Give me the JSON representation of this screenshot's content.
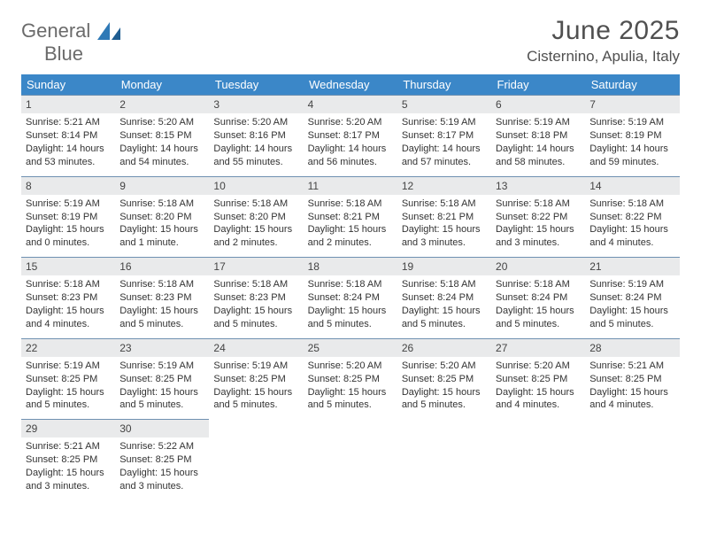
{
  "colors": {
    "header_bg": "#3b87c8",
    "header_text": "#ffffff",
    "daynum_bg": "#e9eaeb",
    "week_divider": "#6f91b1",
    "body_text": "#333333",
    "title_text": "#505050",
    "logo_gray": "#6b6b6b",
    "logo_blue": "#2f79b6",
    "page_bg": "#ffffff"
  },
  "fonts": {
    "title_month_size": 30,
    "title_loc_size": 17,
    "weekday_size": 13,
    "daynum_size": 12,
    "body_size": 11
  },
  "logo": {
    "line1": "General",
    "line2": "Blue"
  },
  "title": {
    "month": "June 2025",
    "location": "Cisternino, Apulia, Italy"
  },
  "weekdays": [
    "Sunday",
    "Monday",
    "Tuesday",
    "Wednesday",
    "Thursday",
    "Friday",
    "Saturday"
  ],
  "weeks": [
    [
      {
        "n": "1",
        "sr": "5:21 AM",
        "ss": "8:14 PM",
        "dl": "14 hours and 53 minutes."
      },
      {
        "n": "2",
        "sr": "5:20 AM",
        "ss": "8:15 PM",
        "dl": "14 hours and 54 minutes."
      },
      {
        "n": "3",
        "sr": "5:20 AM",
        "ss": "8:16 PM",
        "dl": "14 hours and 55 minutes."
      },
      {
        "n": "4",
        "sr": "5:20 AM",
        "ss": "8:17 PM",
        "dl": "14 hours and 56 minutes."
      },
      {
        "n": "5",
        "sr": "5:19 AM",
        "ss": "8:17 PM",
        "dl": "14 hours and 57 minutes."
      },
      {
        "n": "6",
        "sr": "5:19 AM",
        "ss": "8:18 PM",
        "dl": "14 hours and 58 minutes."
      },
      {
        "n": "7",
        "sr": "5:19 AM",
        "ss": "8:19 PM",
        "dl": "14 hours and 59 minutes."
      }
    ],
    [
      {
        "n": "8",
        "sr": "5:19 AM",
        "ss": "8:19 PM",
        "dl": "15 hours and 0 minutes."
      },
      {
        "n": "9",
        "sr": "5:18 AM",
        "ss": "8:20 PM",
        "dl": "15 hours and 1 minute."
      },
      {
        "n": "10",
        "sr": "5:18 AM",
        "ss": "8:20 PM",
        "dl": "15 hours and 2 minutes."
      },
      {
        "n": "11",
        "sr": "5:18 AM",
        "ss": "8:21 PM",
        "dl": "15 hours and 2 minutes."
      },
      {
        "n": "12",
        "sr": "5:18 AM",
        "ss": "8:21 PM",
        "dl": "15 hours and 3 minutes."
      },
      {
        "n": "13",
        "sr": "5:18 AM",
        "ss": "8:22 PM",
        "dl": "15 hours and 3 minutes."
      },
      {
        "n": "14",
        "sr": "5:18 AM",
        "ss": "8:22 PM",
        "dl": "15 hours and 4 minutes."
      }
    ],
    [
      {
        "n": "15",
        "sr": "5:18 AM",
        "ss": "8:23 PM",
        "dl": "15 hours and 4 minutes."
      },
      {
        "n": "16",
        "sr": "5:18 AM",
        "ss": "8:23 PM",
        "dl": "15 hours and 5 minutes."
      },
      {
        "n": "17",
        "sr": "5:18 AM",
        "ss": "8:23 PM",
        "dl": "15 hours and 5 minutes."
      },
      {
        "n": "18",
        "sr": "5:18 AM",
        "ss": "8:24 PM",
        "dl": "15 hours and 5 minutes."
      },
      {
        "n": "19",
        "sr": "5:18 AM",
        "ss": "8:24 PM",
        "dl": "15 hours and 5 minutes."
      },
      {
        "n": "20",
        "sr": "5:18 AM",
        "ss": "8:24 PM",
        "dl": "15 hours and 5 minutes."
      },
      {
        "n": "21",
        "sr": "5:19 AM",
        "ss": "8:24 PM",
        "dl": "15 hours and 5 minutes."
      }
    ],
    [
      {
        "n": "22",
        "sr": "5:19 AM",
        "ss": "8:25 PM",
        "dl": "15 hours and 5 minutes."
      },
      {
        "n": "23",
        "sr": "5:19 AM",
        "ss": "8:25 PM",
        "dl": "15 hours and 5 minutes."
      },
      {
        "n": "24",
        "sr": "5:19 AM",
        "ss": "8:25 PM",
        "dl": "15 hours and 5 minutes."
      },
      {
        "n": "25",
        "sr": "5:20 AM",
        "ss": "8:25 PM",
        "dl": "15 hours and 5 minutes."
      },
      {
        "n": "26",
        "sr": "5:20 AM",
        "ss": "8:25 PM",
        "dl": "15 hours and 5 minutes."
      },
      {
        "n": "27",
        "sr": "5:20 AM",
        "ss": "8:25 PM",
        "dl": "15 hours and 4 minutes."
      },
      {
        "n": "28",
        "sr": "5:21 AM",
        "ss": "8:25 PM",
        "dl": "15 hours and 4 minutes."
      }
    ],
    [
      {
        "n": "29",
        "sr": "5:21 AM",
        "ss": "8:25 PM",
        "dl": "15 hours and 3 minutes."
      },
      {
        "n": "30",
        "sr": "5:22 AM",
        "ss": "8:25 PM",
        "dl": "15 hours and 3 minutes."
      },
      null,
      null,
      null,
      null,
      null
    ]
  ],
  "labels": {
    "sunrise": "Sunrise: ",
    "sunset": "Sunset: ",
    "daylight": "Daylight: "
  }
}
